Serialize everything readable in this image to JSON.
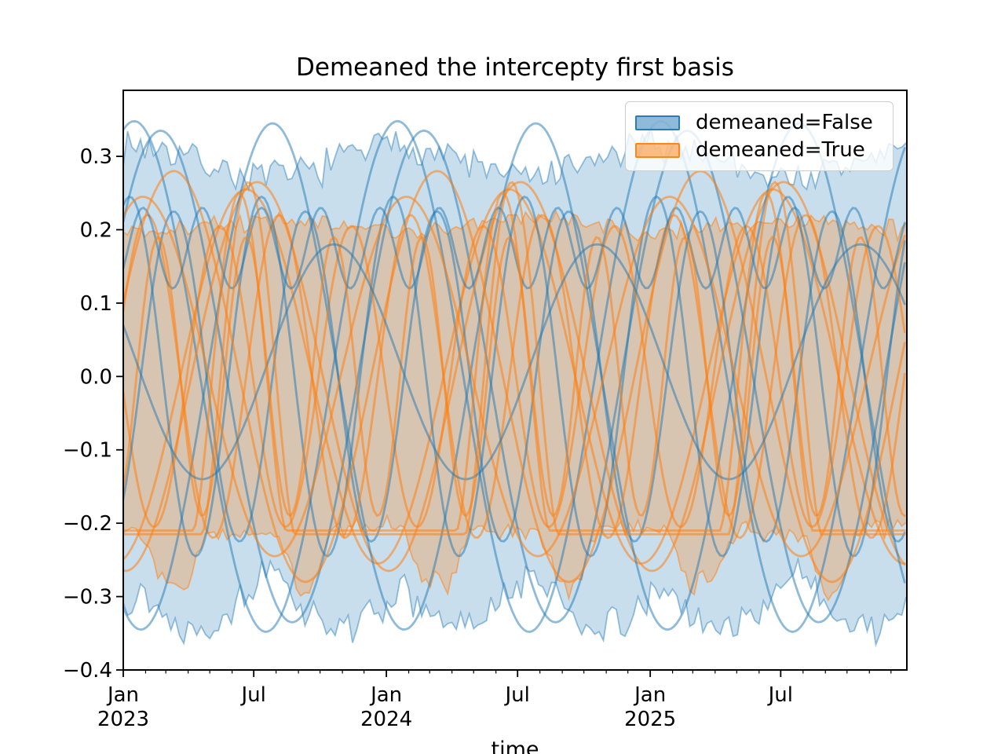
{
  "chart_data": {
    "type": "line",
    "title": "Demeaned the intercepty first basis",
    "xlabel": "time",
    "ylabel": "",
    "grid": false,
    "legend_position": "upper right",
    "ylim": [
      -0.4,
      0.39
    ],
    "x_start": "2023-01-01",
    "x_end": "2025-12-23",
    "x_axis_days": 1087,
    "y_tick_values": [
      0.3,
      0.2,
      0.1,
      0.0,
      -0.1,
      -0.2,
      -0.3,
      -0.4
    ],
    "y_tick_labels": [
      "0.3",
      "0.2",
      "0.1",
      "0.0",
      "−0.1",
      "−0.2",
      "−0.3",
      "−0.4"
    ],
    "x_major_ticks": [
      {
        "month_index": 0,
        "label": "Jan",
        "year": "2023"
      },
      {
        "month_index": 6,
        "label": "Jul",
        "year": ""
      },
      {
        "month_index": 12,
        "label": "Jan",
        "year": "2024"
      },
      {
        "month_index": 18,
        "label": "Jul",
        "year": ""
      },
      {
        "month_index": 24,
        "label": "Jan",
        "year": "2025"
      },
      {
        "month_index": 30,
        "label": "Jul",
        "year": ""
      }
    ],
    "x_minor_ticks": "monthly",
    "groups": [
      {
        "label": "demeaned=False",
        "color": "#1f77b4",
        "band_fill_alpha": 0.24,
        "band_edge_alpha": 0.45,
        "line_alpha": 0.5,
        "band": {
          "upper": {
            "level": 0.293,
            "cos_amp": 0.022,
            "cos_peak_month": 0.6,
            "noise": 0.021,
            "seed": 7
          },
          "lower": {
            "level": -0.278,
            "cos_amp": -0.012,
            "cos_peak_month": 0.6,
            "scallop_amp": 0.062,
            "scallop_period": 6,
            "scallop_phase": 0.6,
            "noise": 0.02,
            "seed": 13
          }
        },
        "lines": [
          {
            "kind": "sin",
            "amplitude": 0.348,
            "period_months": 12,
            "peak_month": 0.5,
            "offset": 0
          },
          {
            "kind": "sin",
            "amplitude": 0.335,
            "period_months": 12,
            "peak_month": 1.7,
            "offset": 0
          },
          {
            "kind": "sin",
            "amplitude": 0.345,
            "period_months": 12,
            "peak_month": 6.8,
            "offset": 0
          },
          {
            "kind": "sin",
            "amplitude": 0.245,
            "period_months": 6,
            "peak_month": 0.3,
            "offset": 0
          },
          {
            "kind": "sin",
            "amplitude": 0.225,
            "period_months": 6,
            "peak_month": 2.3,
            "offset": 0
          },
          {
            "kind": "sin",
            "amplitude": 0.055,
            "period_months": 2.7,
            "peak_month": 0.9,
            "offset": 0.175
          },
          {
            "kind": "sin",
            "amplitude": 0.16,
            "period_months": 12,
            "peak_month": 9.6,
            "offset": 0.02
          }
        ]
      },
      {
        "label": "demeaned=True",
        "color": "#ff7f0e",
        "band_fill_alpha": 0.27,
        "band_edge_alpha": 0.5,
        "line_alpha": 0.55,
        "band": {
          "upper": {
            "level": 0.206,
            "sin_amp": 0.008,
            "sin_peak_month": 4.0,
            "noise": 0.012,
            "seed": 21
          },
          "lower": {
            "level": -0.209,
            "sin_amp": -0.008,
            "sin_peak_month": 4.0,
            "dip_depth": 0.08,
            "dip_center_month": 8.3,
            "dip_half_width_months": 1.4,
            "noise": 0.012,
            "seed": 29
          }
        },
        "lines": [
          {
            "kind": "sin",
            "amplitude": 0.255,
            "period_months": 12,
            "peak_month": 5.6,
            "offset": 0
          },
          {
            "kind": "sin",
            "amplitude": 0.265,
            "period_months": 12,
            "peak_month": 6.1,
            "offset": 0
          },
          {
            "kind": "sin",
            "amplitude": 0.22,
            "period_months": 6,
            "peak_month": 1.1,
            "offset": 0
          },
          {
            "kind": "sin",
            "amplitude": 0.205,
            "period_months": 6,
            "peak_month": 4.4,
            "offset": 0
          },
          {
            "kind": "sin",
            "amplitude": 0.245,
            "period_months": 12,
            "peak_month": 0.9,
            "offset": 0
          },
          {
            "kind": "sin",
            "amplitude": 0.19,
            "period_months": 4,
            "peak_month": 1.6,
            "offset": 0
          },
          {
            "kind": "sin",
            "amplitude": 0.28,
            "period_months": 12,
            "peak_month": 2.3,
            "offset": 0
          },
          {
            "kind": "bump",
            "height": 0.46,
            "half_width_months": 2.1,
            "center_month": 5.3,
            "base": -0.21,
            "exponent": 1.5
          },
          {
            "kind": "bump",
            "height": 0.48,
            "half_width_months": 2.1,
            "center_month": 5.7,
            "base": -0.215,
            "exponent": 1.5
          }
        ]
      }
    ]
  }
}
